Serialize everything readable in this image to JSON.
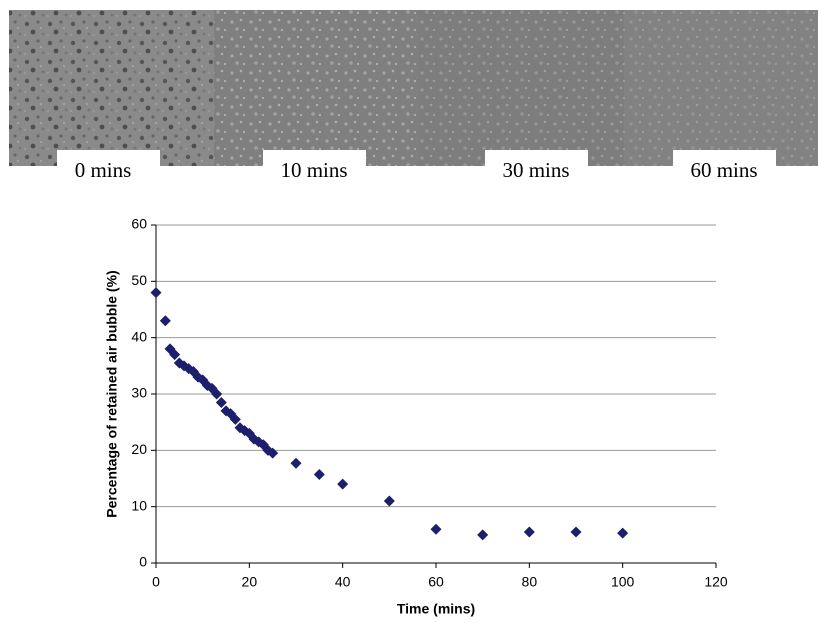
{
  "images": {
    "labels": [
      "0 mins",
      "10 mins",
      "30 mins",
      "60 mins"
    ]
  },
  "chart_data": {
    "type": "scatter",
    "x_label": "Time (mins)",
    "y_label": "Percentage of retained air bubble (%)",
    "x": [
      0,
      2,
      3,
      4,
      5,
      6,
      7,
      8,
      9,
      10,
      11,
      12,
      13,
      14,
      15,
      16,
      17,
      18,
      19,
      20,
      21,
      22,
      23,
      24,
      25,
      30,
      35,
      40,
      50,
      60,
      70,
      80,
      90,
      100
    ],
    "values": [
      48,
      43,
      38,
      37,
      35.5,
      35,
      34.5,
      34,
      33,
      32.5,
      31.5,
      31,
      30,
      28.5,
      27,
      26.5,
      25.5,
      24,
      23.5,
      23,
      22,
      21.5,
      21,
      20,
      19.5,
      17.7,
      15.7,
      14,
      11,
      6,
      5,
      5.5,
      5.5,
      5.3
    ],
    "color": "#1c1f6b",
    "xlim": [
      0,
      120
    ],
    "xticks": [
      0,
      20,
      40,
      60,
      80,
      100,
      120
    ],
    "ylim": [
      0,
      60
    ],
    "yticks": [
      0,
      10,
      20,
      30,
      40,
      50,
      60
    ],
    "grid": true
  }
}
